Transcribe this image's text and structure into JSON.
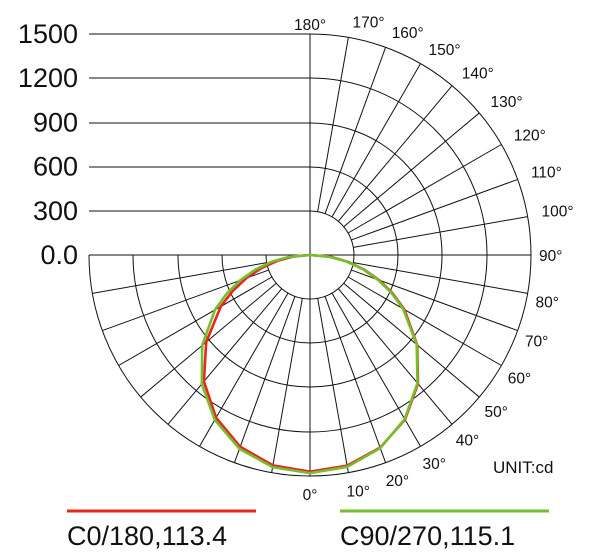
{
  "chart_data": {
    "type": "polar",
    "unit_label": "UNIT:cd",
    "radial_ticks": [
      "0.0",
      "300",
      "600",
      "900",
      "1200",
      "1500"
    ],
    "rlim": [
      0,
      1500
    ],
    "angle_ticks": [
      "0°",
      "10°",
      "20°",
      "30°",
      "40°",
      "50°",
      "60°",
      "70°",
      "80°",
      "90°",
      "100°",
      "110°",
      "120°",
      "130°",
      "140°",
      "150°",
      "160°",
      "170°",
      "180°"
    ],
    "grid": true,
    "series": [
      {
        "name": "C0/180,113.4",
        "color": "#e8261d",
        "angles": [
          0,
          10,
          20,
          30,
          40,
          50,
          60,
          65,
          70,
          75,
          80,
          85,
          90
        ],
        "values_right": [
          1470,
          1452,
          1392,
          1290,
          1140,
          950,
          740,
          620,
          500,
          380,
          260,
          140,
          0
        ],
        "values_left": [
          1470,
          1450,
          1385,
          1275,
          1120,
          920,
          700,
          580,
          460,
          340,
          220,
          110,
          0
        ]
      },
      {
        "name": "C90/270,115.1",
        "color": "#73bf2e",
        "angles": [
          0,
          10,
          20,
          30,
          40,
          50,
          60,
          65,
          70,
          75,
          80,
          85,
          90
        ],
        "values_right": [
          1480,
          1460,
          1395,
          1285,
          1135,
          945,
          730,
          610,
          490,
          370,
          250,
          130,
          0
        ],
        "values_left": [
          1480,
          1462,
          1400,
          1292,
          1142,
          955,
          745,
          625,
          505,
          385,
          265,
          140,
          0
        ]
      }
    ]
  }
}
